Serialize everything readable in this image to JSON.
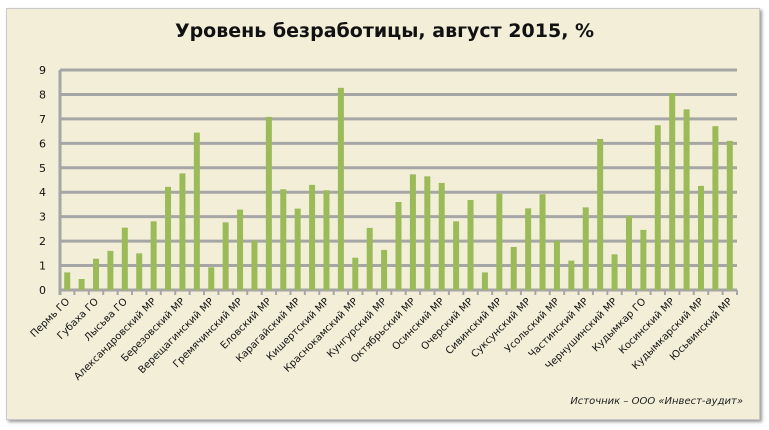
{
  "chart_data": {
    "type": "bar",
    "title": "Уровень безработицы, август 2015, %",
    "source": "Источник – ООО «Инвест-аудит»",
    "xlabel": "",
    "ylabel": "",
    "ylim": [
      0,
      9
    ],
    "yticks": [
      "0",
      "1",
      "2",
      "3",
      "4",
      "5",
      "6",
      "7",
      "8",
      "9"
    ],
    "grid": true,
    "legend": "none",
    "bar_color": "#9bbb59",
    "grid_color": "#a6a6a6",
    "background": "#f2eed7",
    "categories": [
      "Пермь ГО",
      "",
      "Губаха ГО",
      "",
      "Лысьва ГО",
      "",
      "Александровский МР",
      "",
      "Березовский МР",
      "",
      "Верещагинский МР",
      "",
      "Гремячинский МР",
      "",
      "Еловский МР",
      "",
      "Карагайский МР",
      "",
      "Кишертский МР",
      "",
      "Краснокамский МР",
      "",
      "Кунгурский МР",
      "",
      "Октябрьский МР",
      "",
      "Осинский МР",
      "",
      "Очерский МР",
      "",
      "Сивинский МР",
      "",
      "Суксунский МР",
      "",
      "Усольский МР",
      "",
      "Частинский МР",
      "",
      "Чернушинский МР",
      "",
      "Кудымкар ГО",
      "",
      "Косинский  МР",
      "",
      "Кудымкарский МР",
      "",
      "Юсьвинский МР"
    ],
    "values": [
      0.72,
      0.45,
      1.28,
      1.6,
      2.55,
      1.5,
      2.81,
      4.22,
      4.77,
      6.44,
      0.93,
      2.77,
      3.29,
      2.02,
      7.08,
      4.12,
      3.33,
      4.3,
      4.08,
      8.27,
      1.32,
      2.54,
      1.64,
      3.6,
      4.73,
      4.65,
      4.38,
      2.81,
      3.68,
      0.72,
      3.94,
      1.76,
      3.34,
      3.92,
      2.02,
      1.2,
      3.38,
      6.18,
      1.46,
      3.03,
      2.46,
      6.74,
      8.05,
      7.39,
      4.26,
      6.7,
      6.1
    ]
  }
}
